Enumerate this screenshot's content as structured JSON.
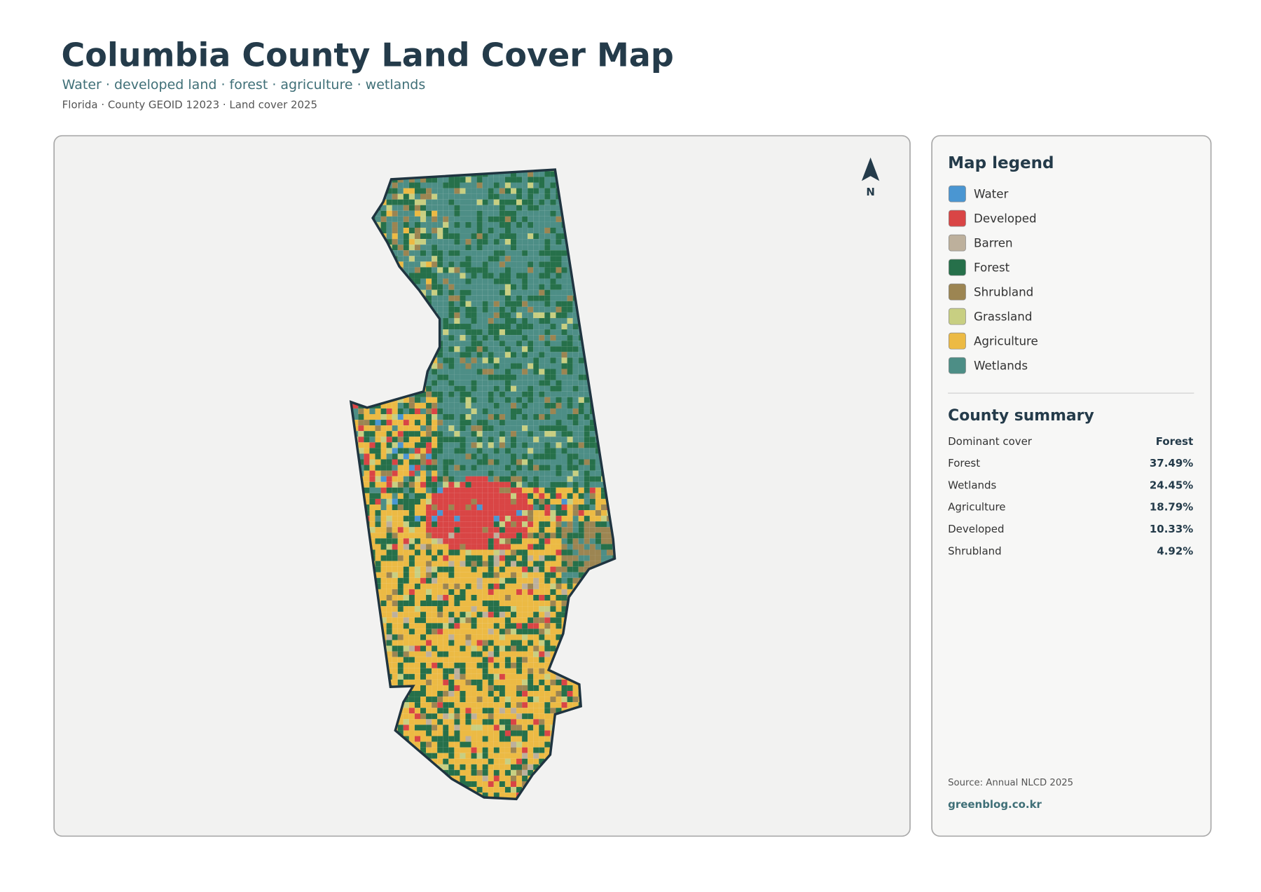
{
  "header": {
    "title": "Columbia County Land Cover Map",
    "subtitle": "Water · developed land · forest · agriculture · wetlands",
    "meta": "Florida · County GEOID 12023 · Land cover 2025"
  },
  "map": {
    "north_label": "N"
  },
  "legend": {
    "title": "Map legend",
    "items": [
      {
        "label": "Water",
        "color": "#4a96d2"
      },
      {
        "label": "Developed",
        "color": "#d94545"
      },
      {
        "label": "Barren",
        "color": "#bdb09c"
      },
      {
        "label": "Forest",
        "color": "#26704a"
      },
      {
        "label": "Shrubland",
        "color": "#9c8552"
      },
      {
        "label": "Grassland",
        "color": "#c8cf82"
      },
      {
        "label": "Agriculture",
        "color": "#ecba44"
      },
      {
        "label": "Wetlands",
        "color": "#4d8e86"
      }
    ]
  },
  "summary": {
    "title": "County summary",
    "rows": [
      {
        "label": "Dominant cover",
        "value": "Forest"
      },
      {
        "label": "Forest",
        "value": "37.49%"
      },
      {
        "label": "Wetlands",
        "value": "24.45%"
      },
      {
        "label": "Agriculture",
        "value": "18.79%"
      },
      {
        "label": "Developed",
        "value": "10.33%"
      },
      {
        "label": "Shrubland",
        "value": "4.92%"
      }
    ]
  },
  "footer": {
    "source": "Source: Annual NLCD 2025",
    "site": "greenblog.co.kr"
  }
}
